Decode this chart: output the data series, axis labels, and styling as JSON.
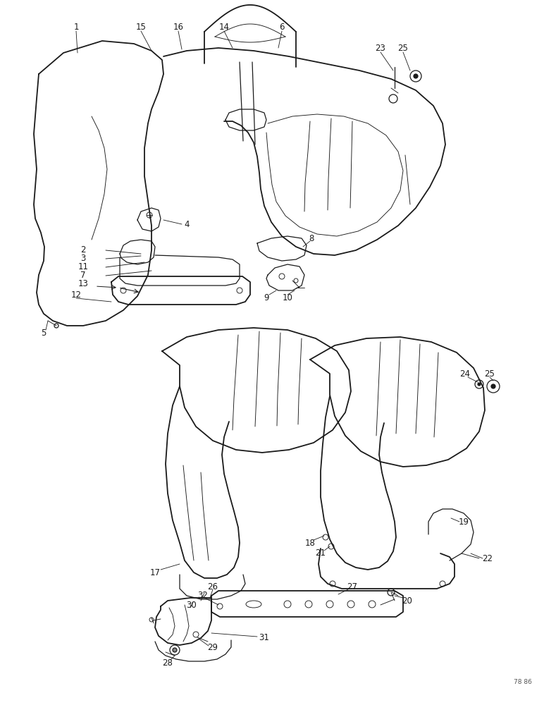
{
  "bg_color": "#ffffff",
  "line_color": "#1a1a1a",
  "figure_width": 7.72,
  "figure_height": 10.0,
  "dpi": 100,
  "watermark": "78 86"
}
